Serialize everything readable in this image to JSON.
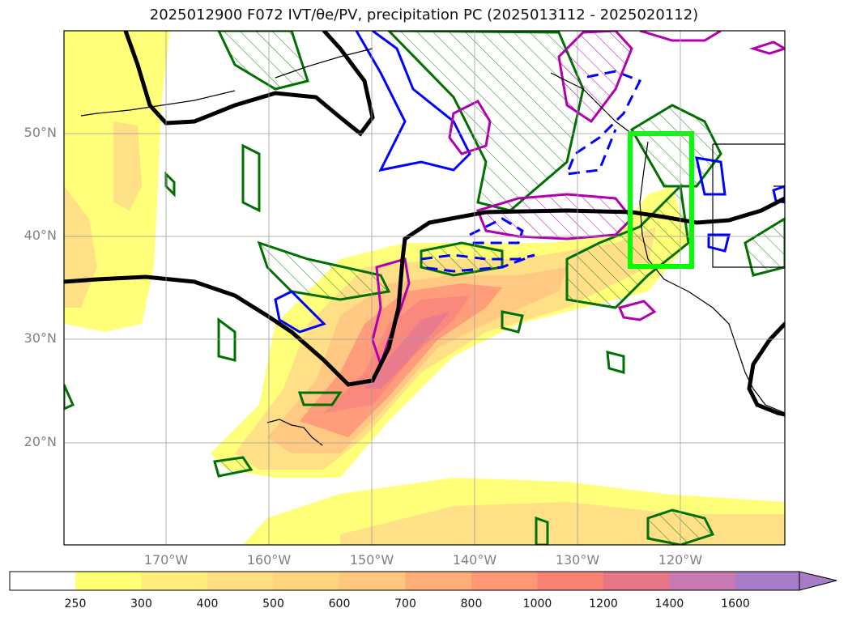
{
  "title": "2025012900 F072 IVT/θe/PV, precipitation PC (2025013112 - 2025020112)",
  "lat_labels": [
    "50°N",
    "40°N",
    "30°N",
    "20°N"
  ],
  "lon_labels": [
    "170°W",
    "160°W",
    "150°W",
    "140°W",
    "130°W",
    "120°W"
  ],
  "colorbar": {
    "levels": [
      "250",
      "300",
      "400",
      "500",
      "600",
      "700",
      "800",
      "1000",
      "1200",
      "1400",
      "1600"
    ],
    "colors": [
      "#ffff73",
      "#ffec7a",
      "#ffdf80",
      "#ffd47f",
      "#ffc77e",
      "#ffad77",
      "#ff9873",
      "#fa8275",
      "#e87487",
      "#c77ab0",
      "#a77cc6"
    ]
  },
  "colors": {
    "theta_e_contour": "#000000",
    "pv_positive": "#0000ff",
    "pv_negative": "#b000b0",
    "precip_pc": "#007000",
    "target_box": "#00ff00"
  }
}
